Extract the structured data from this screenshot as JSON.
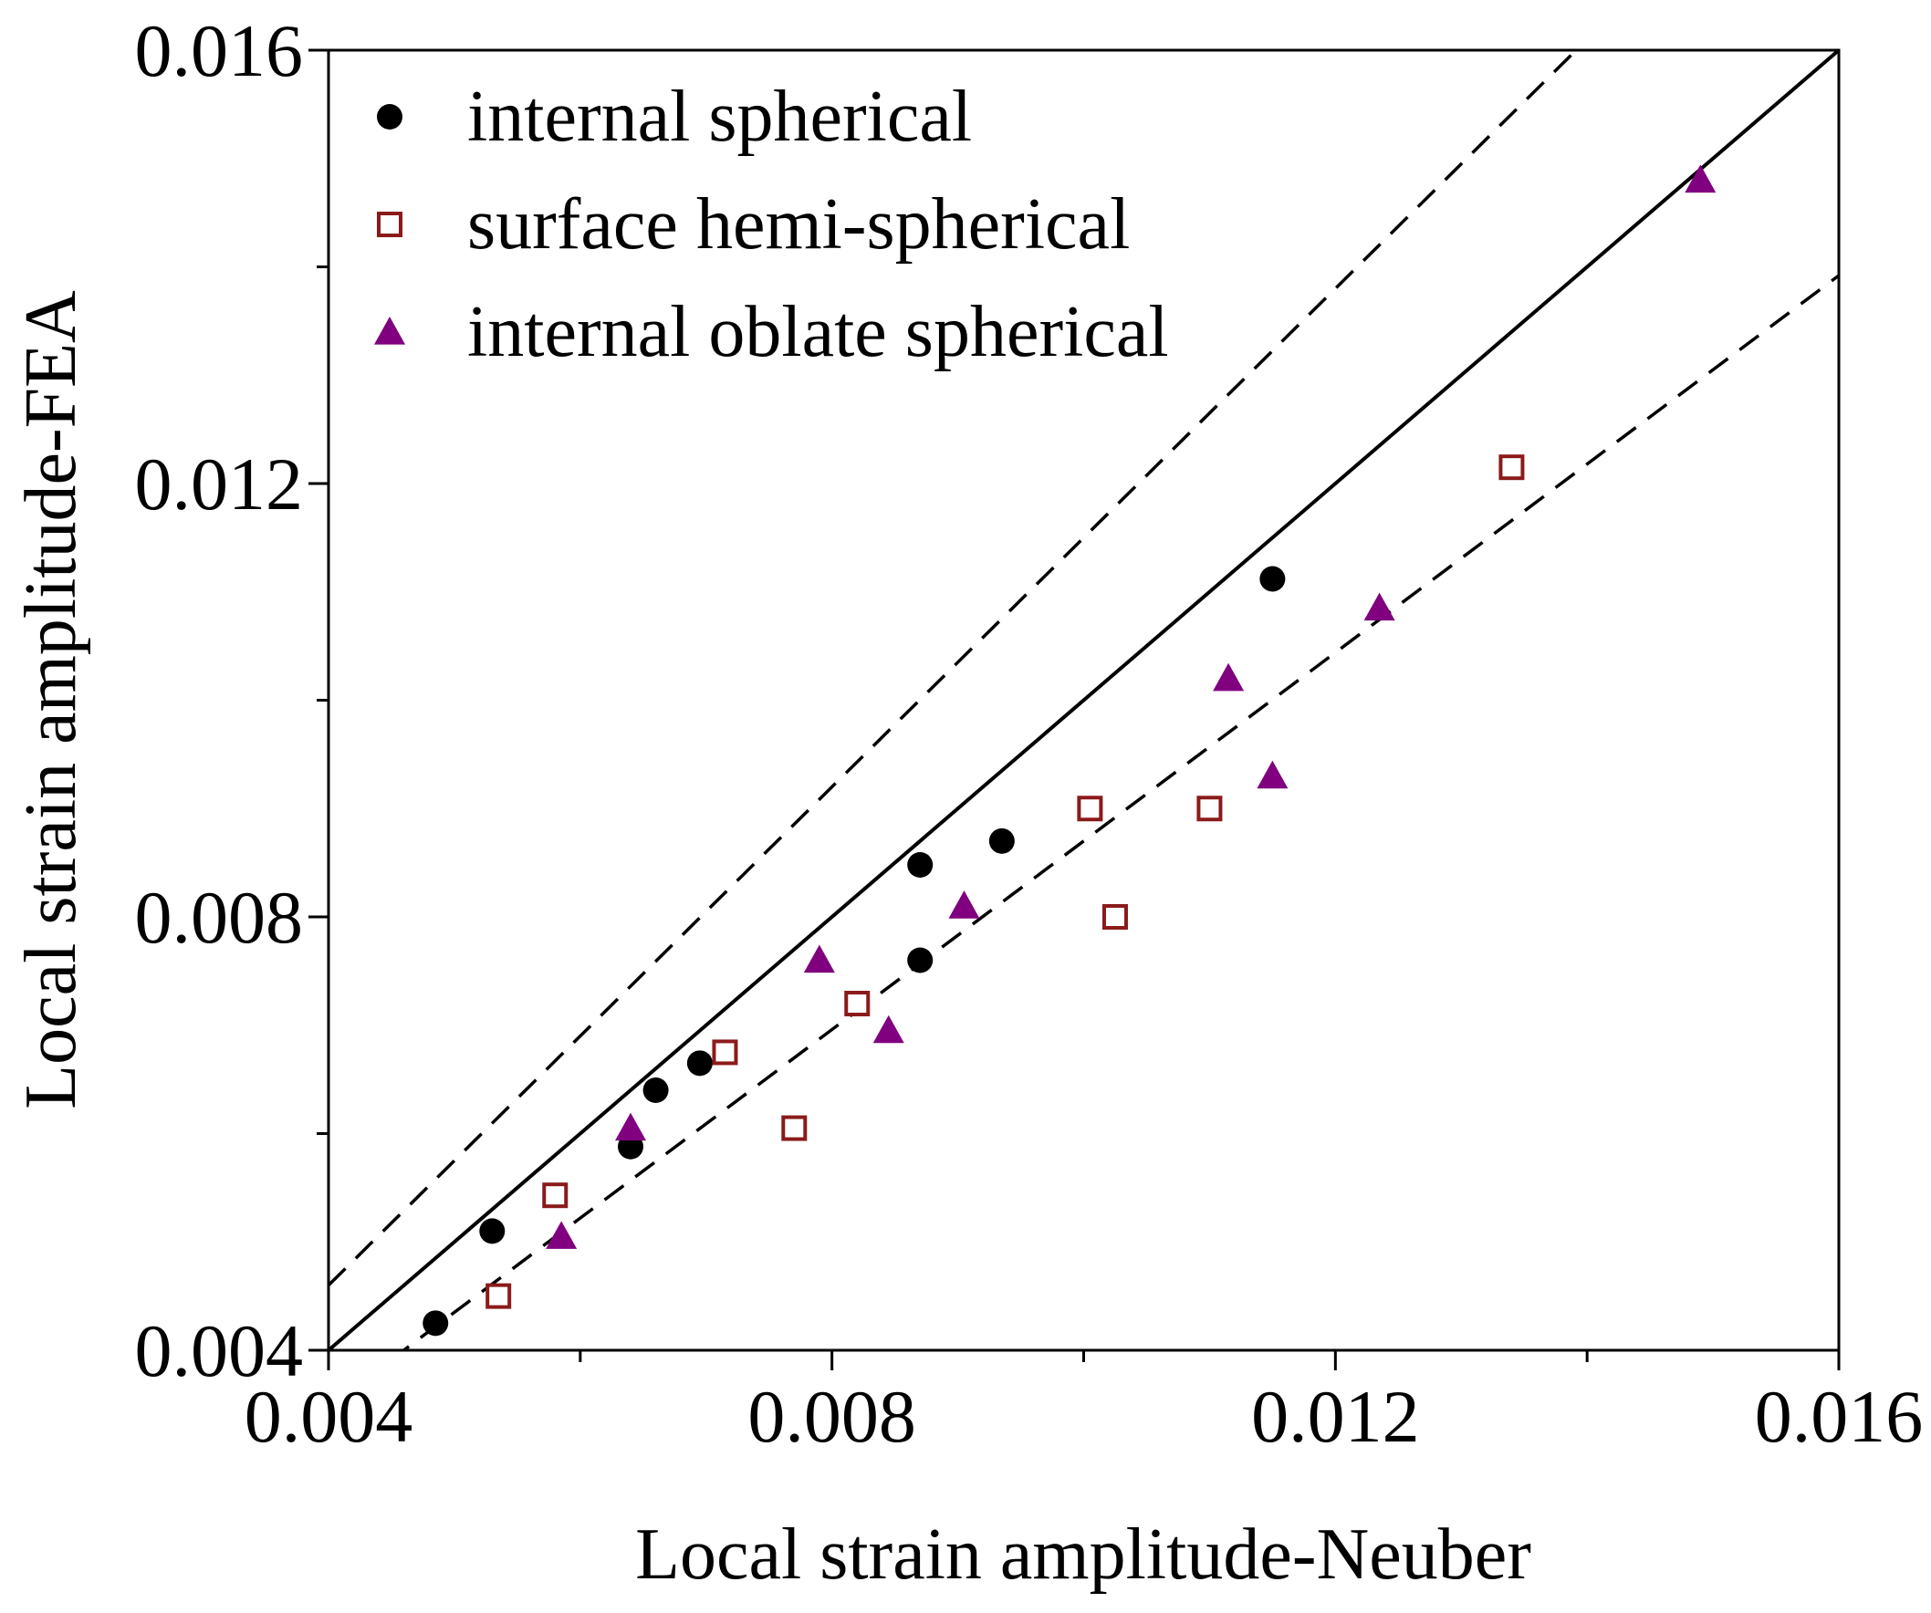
{
  "chart_data": {
    "type": "scatter",
    "title": "",
    "xlabel": "Local strain amplitude-Neuber",
    "ylabel": "Local strain amplitude-FEA",
    "xlim": [
      0.004,
      0.016
    ],
    "ylim": [
      0.004,
      0.016
    ],
    "x_ticks": [
      {
        "value": 0.004,
        "label": "0.004"
      },
      {
        "value": 0.008,
        "label": "0.008"
      },
      {
        "value": 0.012,
        "label": "0.012"
      },
      {
        "value": 0.016,
        "label": "0.016"
      }
    ],
    "y_ticks": [
      {
        "value": 0.004,
        "label": "0.004"
      },
      {
        "value": 0.008,
        "label": "0.008"
      },
      {
        "value": 0.012,
        "label": "0.012"
      },
      {
        "value": 0.016,
        "label": "0.016"
      }
    ],
    "minor_tick_step": 0.002,
    "grid": false,
    "legend_position": "top-left",
    "reference_lines": [
      {
        "name": "1:1 line",
        "style": "solid",
        "factor": 1.0
      },
      {
        "name": "upper bound",
        "style": "dashed",
        "factor": 1.15
      },
      {
        "name": "lower bound",
        "style": "dashed",
        "factor": 0.87
      }
    ],
    "series": [
      {
        "name": "internal spherical",
        "marker": "filled-circle",
        "color": "#000000",
        "points": [
          [
            0.00485,
            0.00425
          ],
          [
            0.0053,
            0.0051
          ],
          [
            0.0064,
            0.00588
          ],
          [
            0.0066,
            0.0064
          ],
          [
            0.00695,
            0.00665
          ],
          [
            0.0087,
            0.00848
          ],
          [
            0.0087,
            0.0076
          ],
          [
            0.00935,
            0.0087
          ],
          [
            0.0115,
            0.01112
          ]
        ]
      },
      {
        "name": "surface hemi-spherical",
        "marker": "open-square",
        "color": "#8b1a1a",
        "points": [
          [
            0.00535,
            0.0045
          ],
          [
            0.0058,
            0.00543
          ],
          [
            0.00715,
            0.00675
          ],
          [
            0.0077,
            0.00605
          ],
          [
            0.0082,
            0.0072
          ],
          [
            0.01005,
            0.009
          ],
          [
            0.01025,
            0.008
          ],
          [
            0.011,
            0.009
          ],
          [
            0.0134,
            0.01215
          ]
        ]
      },
      {
        "name": "internal oblate spherical",
        "marker": "filled-triangle",
        "color": "#800080",
        "points": [
          [
            0.00585,
            0.00505
          ],
          [
            0.0064,
            0.00605
          ],
          [
            0.0079,
            0.0076
          ],
          [
            0.00845,
            0.00695
          ],
          [
            0.00905,
            0.0081
          ],
          [
            0.01115,
            0.0102
          ],
          [
            0.0115,
            0.0093
          ],
          [
            0.01235,
            0.01085
          ],
          [
            0.0149,
            0.0148
          ]
        ]
      }
    ]
  }
}
